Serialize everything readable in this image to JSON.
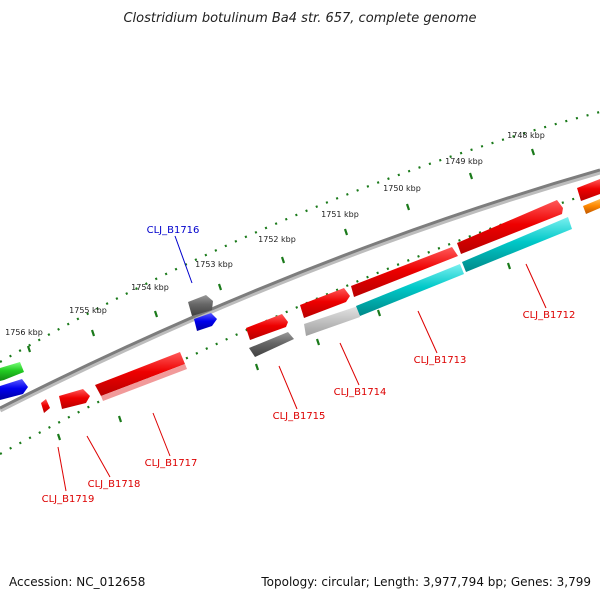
{
  "title": "Clostridium botulinum Ba4 str. 657, complete genome",
  "footer": {
    "accession": "Accession: NC_012658",
    "summary": "Topology: circular; Length: 3,977,794 bp; Genes: 3,799"
  },
  "scale": {
    "unit": "kbp",
    "ticks": [
      "1748 kbp",
      "1749 kbp",
      "1750 kbp",
      "1751 kbp",
      "1752 kbp",
      "1753 kbp",
      "1754 kbp",
      "1755 kbp",
      "1756 kbp"
    ]
  },
  "colors": {
    "gene_red": "#ee0000",
    "gene_gray": "#666666",
    "gene_light_gray": "#c4c4c4",
    "gene_blue": "#0000ee",
    "gene_green": "#22cc22",
    "gene_cyan": "#00c8c8",
    "gene_orange": "#ff8800",
    "label_red": "#dd0000",
    "label_blue": "#0000cc",
    "tick_green": "#1a7a1a",
    "backbone": "#808080"
  },
  "gene_labels": [
    {
      "name": "CLJ_B1716",
      "color": "blue"
    },
    {
      "name": "CLJ_B1712",
      "color": "red"
    },
    {
      "name": "CLJ_B1713",
      "color": "red"
    },
    {
      "name": "CLJ_B1714",
      "color": "red"
    },
    {
      "name": "CLJ_B1715",
      "color": "red"
    },
    {
      "name": "CLJ_B1717",
      "color": "red"
    },
    {
      "name": "CLJ_B1718",
      "color": "red"
    },
    {
      "name": "CLJ_B1719",
      "color": "red"
    }
  ]
}
